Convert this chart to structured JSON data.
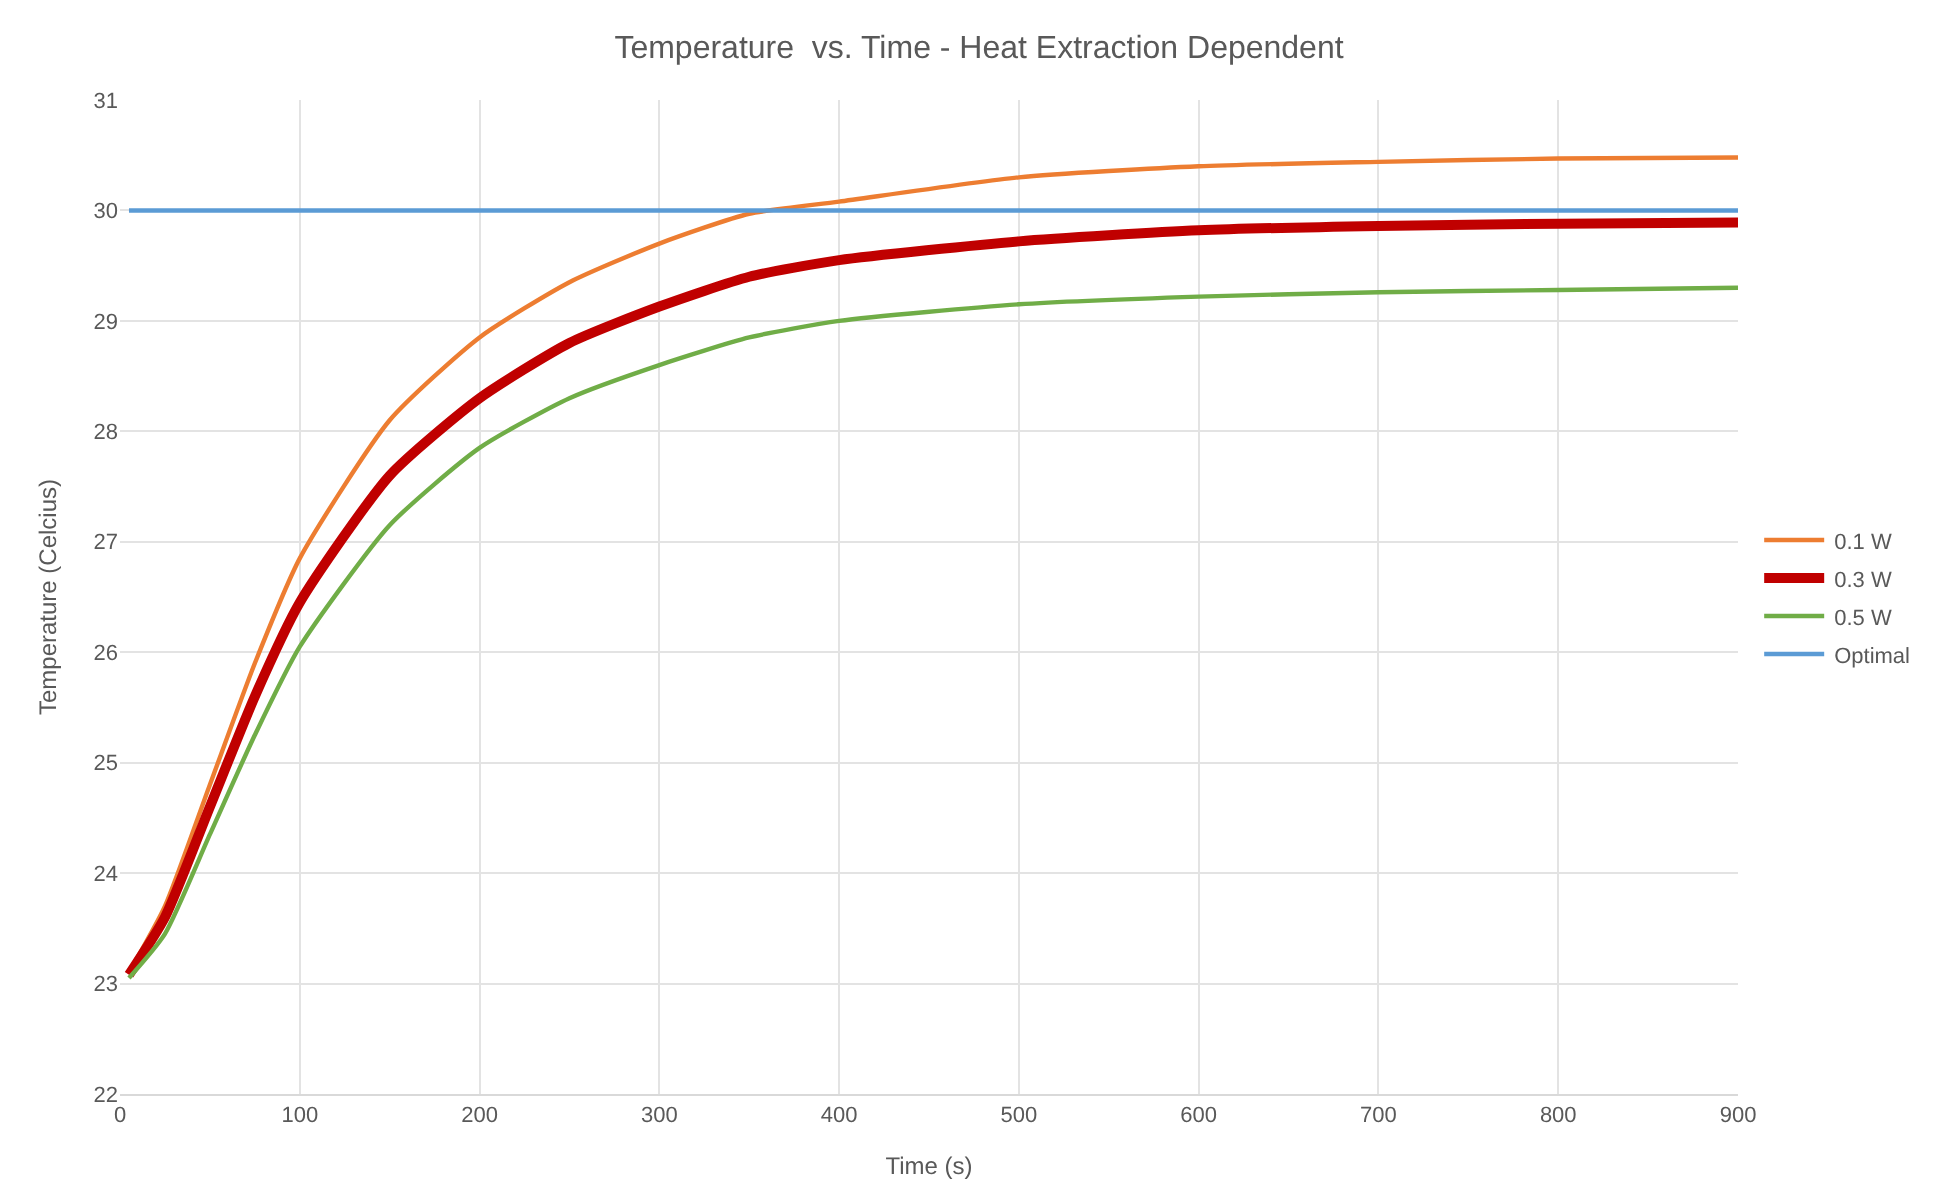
{
  "chart_data": {
    "type": "line",
    "title": "Temperature  vs. Time - Heat Extraction Dependent",
    "xlabel": "Time (s)",
    "ylabel": "Temperature (Celcius)",
    "x": [
      5,
      25,
      50,
      75,
      100,
      150,
      200,
      250,
      300,
      350,
      400,
      500,
      600,
      700,
      800,
      900
    ],
    "series": [
      {
        "name": "0.1 W",
        "color": "#ed7d31",
        "values": [
          23.1,
          23.7,
          24.8,
          25.9,
          26.85,
          28.1,
          28.85,
          29.35,
          29.7,
          29.97,
          30.08,
          30.3,
          30.4,
          30.44,
          30.47,
          30.48
        ]
      },
      {
        "name": "0.3 W",
        "color": "#c00000",
        "values": [
          23.08,
          23.6,
          24.6,
          25.6,
          26.45,
          27.6,
          28.3,
          28.8,
          29.13,
          29.4,
          29.55,
          29.72,
          29.82,
          29.86,
          29.88,
          29.89
        ]
      },
      {
        "name": "0.5 W",
        "color": "#70ad47",
        "values": [
          23.05,
          23.45,
          24.35,
          25.25,
          26.05,
          27.15,
          27.85,
          28.3,
          28.6,
          28.85,
          29.0,
          29.15,
          29.22,
          29.26,
          29.28,
          29.3
        ]
      },
      {
        "name": "Optimal",
        "color": "#5b9bd5",
        "values": [
          30,
          30,
          30,
          30,
          30,
          30,
          30,
          30,
          30,
          30,
          30,
          30,
          30,
          30,
          30,
          30
        ]
      }
    ],
    "xlim": [
      0,
      900
    ],
    "xticks": [
      0,
      100,
      200,
      300,
      400,
      500,
      600,
      700,
      800,
      900
    ],
    "ylim": [
      22,
      31
    ],
    "yticks": [
      22,
      23,
      24,
      25,
      26,
      27,
      28,
      29,
      30,
      31
    ],
    "grid": true,
    "legend": "right",
    "marker": "none",
    "line_style": "solid"
  }
}
